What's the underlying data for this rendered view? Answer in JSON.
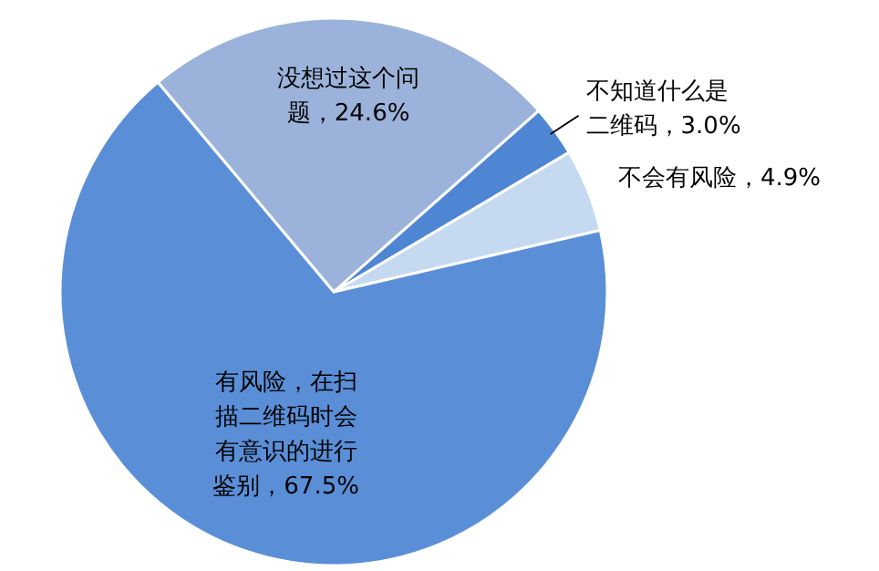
{
  "chart_data": {
    "type": "pie",
    "categories": [
      "没想过这个问题",
      "不知道什么是二维码",
      "不会有风险",
      "有风险，在扫描二维码时会有意识的进行鉴别"
    ],
    "values": [
      24.6,
      3.0,
      4.9,
      67.5
    ],
    "colors": [
      "#9bb3da",
      "#4f86d4",
      "#c5d9f1",
      "#5a8fd8"
    ],
    "value_labels": [
      "24.6%",
      "3.0%",
      "4.9%",
      "67.5%"
    ]
  }
}
